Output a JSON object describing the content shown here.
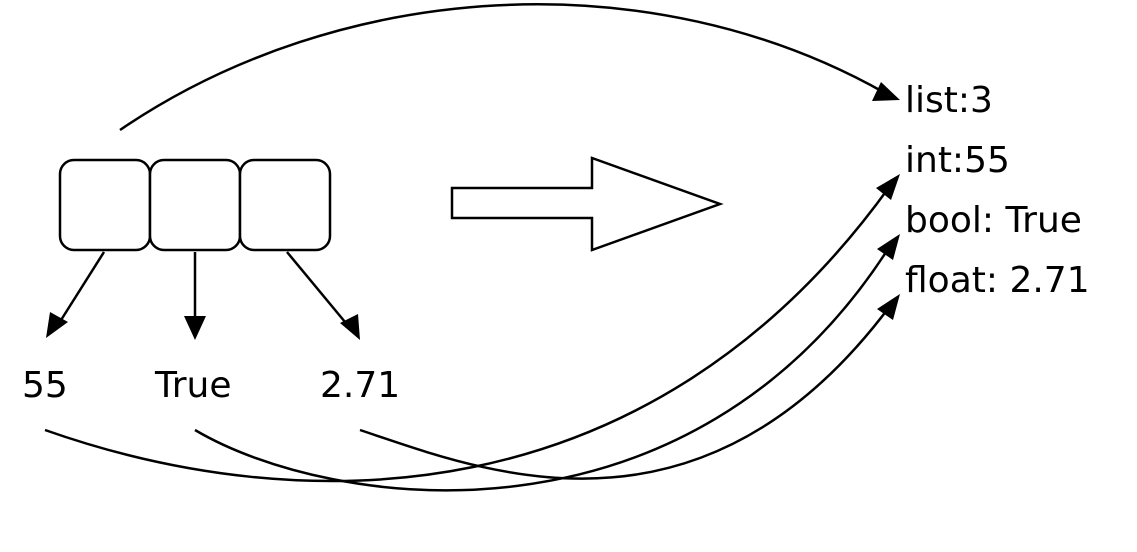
{
  "values": [
    "55",
    "True",
    "2.71"
  ],
  "output_lines": [
    "list:3",
    "int:55",
    "bool: True",
    "float: 2.71"
  ],
  "colors": {
    "stroke": "#000000",
    "background": "#ffffff"
  }
}
